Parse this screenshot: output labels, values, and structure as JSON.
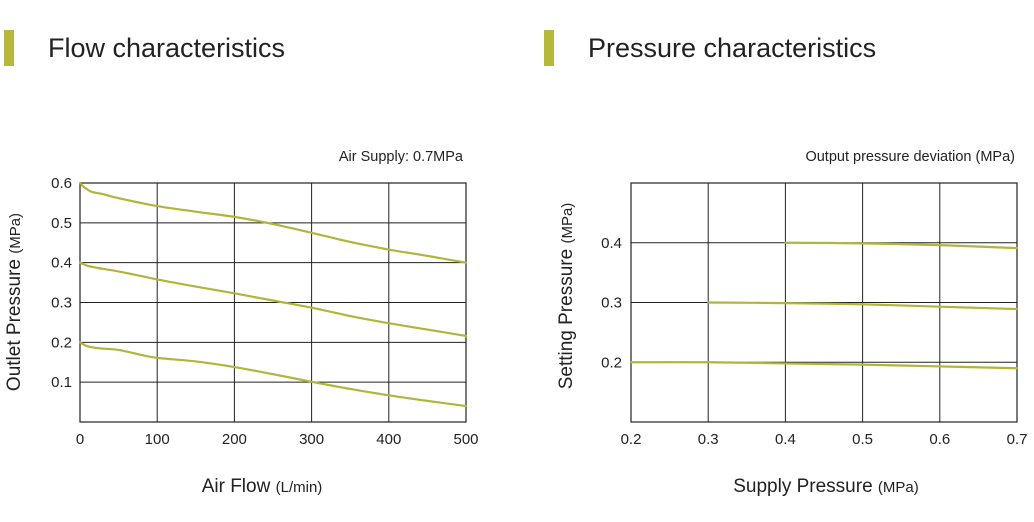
{
  "accent_color": "#b5b83c",
  "curve_color": "#b0b53c",
  "headings": {
    "left": "Flow characteristics",
    "right": "Pressure characteristics"
  },
  "chart_data": [
    {
      "type": "line",
      "title": "Flow characteristics",
      "annotation": "Air Supply: 0.7MPa",
      "xlabel": "Air Flow",
      "xlabel_unit": "(L/min)",
      "ylabel": "Outlet Pressure",
      "ylabel_unit": "(MPa)",
      "xlim": [
        0,
        500
      ],
      "ylim": [
        0,
        0.6
      ],
      "xticks": [
        0,
        100,
        200,
        300,
        400,
        500
      ],
      "yticks": [
        0.1,
        0.2,
        0.3,
        0.4,
        0.5,
        0.6
      ],
      "xtick_labels": [
        "0",
        "100",
        "200",
        "300",
        "400",
        "500"
      ],
      "ytick_labels": [
        "0.1",
        "0.2",
        "0.3",
        "0.4",
        "0.5",
        "0.6"
      ],
      "grid": true,
      "series": [
        {
          "x": [
            0,
            5,
            15,
            30,
            50,
            100,
            150,
            200,
            250,
            300,
            350,
            400,
            450,
            500
          ],
          "y": [
            0.6,
            0.59,
            0.578,
            0.572,
            0.562,
            0.542,
            0.528,
            0.515,
            0.497,
            0.475,
            0.452,
            0.433,
            0.417,
            0.4
          ]
        },
        {
          "x": [
            0,
            10,
            25,
            50,
            100,
            150,
            200,
            250,
            300,
            350,
            400,
            450,
            500
          ],
          "y": [
            0.4,
            0.392,
            0.386,
            0.378,
            0.358,
            0.34,
            0.323,
            0.305,
            0.287,
            0.266,
            0.248,
            0.232,
            0.216
          ]
        },
        {
          "x": [
            0,
            10,
            25,
            50,
            80,
            100,
            150,
            200,
            250,
            300,
            350,
            400,
            450,
            500
          ],
          "y": [
            0.2,
            0.19,
            0.185,
            0.181,
            0.168,
            0.161,
            0.152,
            0.138,
            0.12,
            0.101,
            0.083,
            0.067,
            0.053,
            0.04
          ]
        }
      ]
    },
    {
      "type": "line",
      "title": "Pressure characteristics",
      "annotation": "Output pressure deviation (MPa)",
      "xlabel": "Supply Pressure",
      "xlabel_unit": "(MPa)",
      "ylabel": "Setting Pressure",
      "ylabel_unit": "(MPa)",
      "xlim": [
        0.2,
        0.7
      ],
      "ylim": [
        0.1,
        0.5
      ],
      "xticks": [
        0.2,
        0.3,
        0.4,
        0.5,
        0.6,
        0.7
      ],
      "yticks": [
        0.2,
        0.3,
        0.4
      ],
      "xtick_labels": [
        "0.2",
        "0.3",
        "0.4",
        "0.5",
        "0.6",
        "0.7"
      ],
      "ytick_labels": [
        "0.2",
        "0.3",
        "0.4"
      ],
      "grid": true,
      "series": [
        {
          "x": [
            0.4,
            0.5,
            0.6,
            0.7
          ],
          "y": [
            0.4,
            0.399,
            0.396,
            0.391
          ]
        },
        {
          "x": [
            0.3,
            0.4,
            0.5,
            0.6,
            0.7
          ],
          "y": [
            0.3,
            0.299,
            0.297,
            0.293,
            0.289
          ]
        },
        {
          "x": [
            0.2,
            0.3,
            0.4,
            0.5,
            0.6,
            0.7
          ],
          "y": [
            0.2,
            0.2,
            0.198,
            0.196,
            0.193,
            0.19
          ]
        }
      ]
    }
  ]
}
